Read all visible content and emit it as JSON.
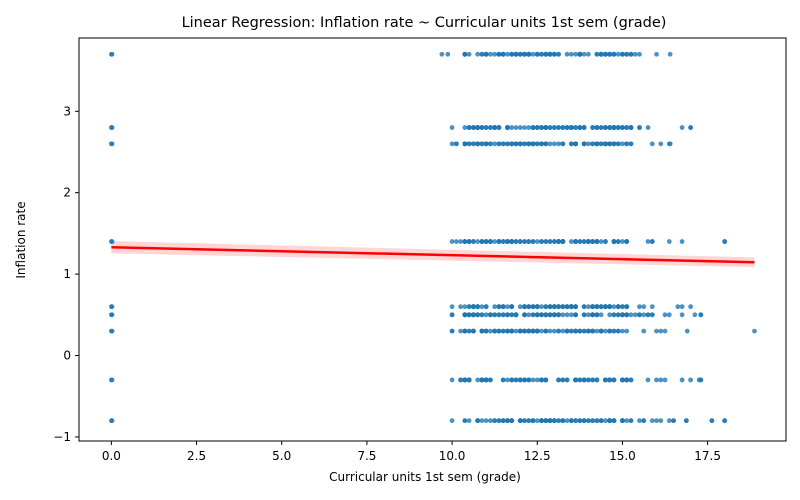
{
  "chart_data": {
    "type": "scatter",
    "title": "Linear Regression: Inflation rate ~ Curricular units 1st sem (grade)",
    "xlabel": "Curricular units 1st sem (grade)",
    "ylabel": "Inflation rate",
    "xlim": [
      -0.95,
      19.8
    ],
    "ylim": [
      -1.05,
      3.9
    ],
    "xticks": [
      0.0,
      2.5,
      5.0,
      7.5,
      10.0,
      12.5,
      15.0,
      17.5
    ],
    "xtick_labels": [
      "0.0",
      "2.5",
      "5.0",
      "7.5",
      "10.0",
      "12.5",
      "15.0",
      "17.5"
    ],
    "yticks": [
      -1,
      0,
      1,
      2,
      3
    ],
    "ytick_labels": [
      "−1",
      "0",
      "1",
      "2",
      "3"
    ],
    "grid": false,
    "colors": {
      "points": "#1f77b4",
      "line": "#ff0000",
      "band": "#ffb3b3"
    },
    "inflation_levels": [
      3.7,
      2.8,
      2.6,
      1.4,
      0.6,
      0.5,
      0.3,
      -0.3,
      -0.8
    ],
    "zero_grade_points": [
      {
        "x": 0,
        "y": 3.7
      },
      {
        "x": 0,
        "y": 2.8
      },
      {
        "x": 0,
        "y": 2.6
      },
      {
        "x": 0,
        "y": 1.4
      },
      {
        "x": 0,
        "y": 0.6
      },
      {
        "x": 0,
        "y": 0.5
      },
      {
        "x": 0,
        "y": 0.3
      },
      {
        "x": 0,
        "y": -0.3
      },
      {
        "x": 0,
        "y": -0.8
      }
    ],
    "grade_clusters": [
      {
        "y": 3.7,
        "x_min": 9.7,
        "x_max": 16.4
      },
      {
        "y": 2.8,
        "x_min": 10.0,
        "x_max": 17.0
      },
      {
        "y": 2.6,
        "x_min": 10.0,
        "x_max": 16.4
      },
      {
        "y": 1.4,
        "x_min": 10.0,
        "x_max": 18.0
      },
      {
        "y": 0.6,
        "x_min": 10.0,
        "x_max": 17.0
      },
      {
        "y": 0.5,
        "x_min": 10.0,
        "x_max": 17.3
      },
      {
        "y": 0.3,
        "x_min": 10.0,
        "x_max": 16.9
      },
      {
        "y": -0.3,
        "x_min": 10.0,
        "x_max": 17.3
      },
      {
        "y": -0.8,
        "x_min": 10.0,
        "x_max": 18.0
      }
    ],
    "outlier_points": [
      {
        "x": 18.0,
        "y": 1.4
      },
      {
        "x": 18.0,
        "y": -0.8
      },
      {
        "x": 18.875,
        "y": 0.3
      },
      {
        "x": 17.0,
        "y": 2.8
      },
      {
        "x": 17.3,
        "y": 0.5
      },
      {
        "x": 17.3,
        "y": -0.3
      }
    ],
    "regression_line": {
      "x": [
        0.0,
        18.875
      ],
      "y": [
        1.33,
        1.145
      ],
      "ci_halfwidth_start": 0.075,
      "ci_halfwidth_end": 0.06
    }
  }
}
